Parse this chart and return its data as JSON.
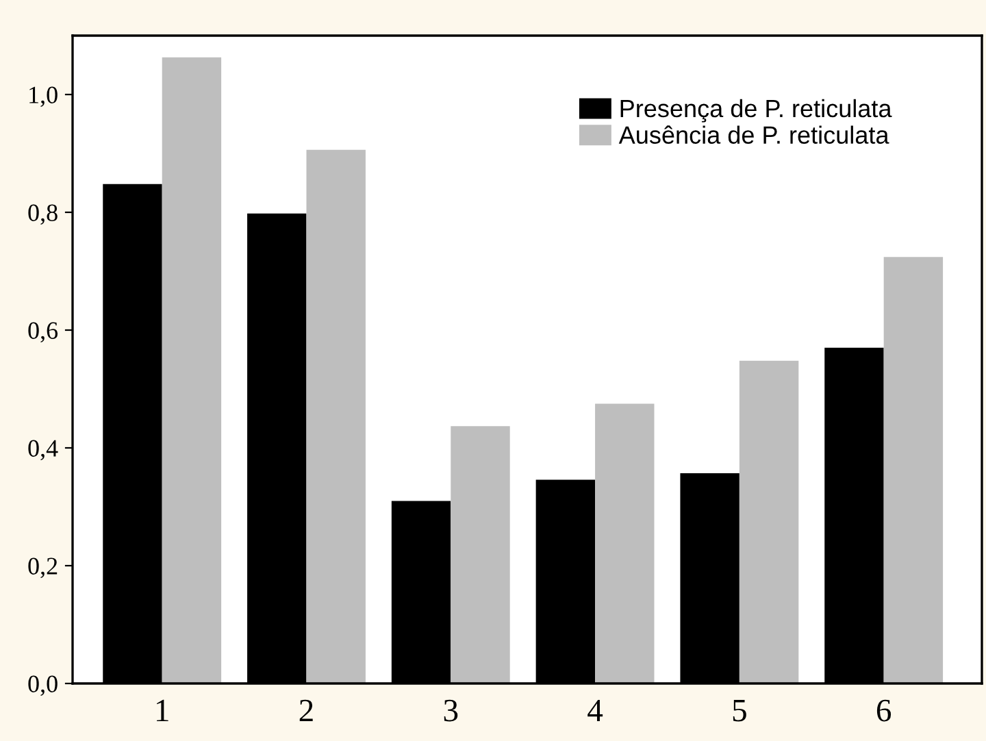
{
  "chart_data": {
    "type": "bar",
    "categories": [
      "1",
      "2",
      "3",
      "4",
      "5",
      "6"
    ],
    "series": [
      {
        "name": "Presença de P. reticulata",
        "color": "#000000",
        "values": [
          0.848,
          0.798,
          0.31,
          0.346,
          0.357,
          0.57
        ]
      },
      {
        "name": "Ausência de P. reticulata",
        "color": "#bebebe",
        "values": [
          1.063,
          0.906,
          0.437,
          0.475,
          0.548,
          0.724
        ]
      }
    ],
    "ylim": [
      0,
      1.1
    ],
    "yticks": [
      {
        "value": 0,
        "label": "0,0"
      },
      {
        "value": 0.2,
        "label": "0,2"
      },
      {
        "value": 0.4,
        "label": "0,4"
      },
      {
        "value": 0.6,
        "label": "0,6"
      },
      {
        "value": 0.8,
        "label": "0,8"
      },
      {
        "value": 1.0,
        "label": "1,0"
      }
    ],
    "grid": false,
    "legend": "top right"
  }
}
